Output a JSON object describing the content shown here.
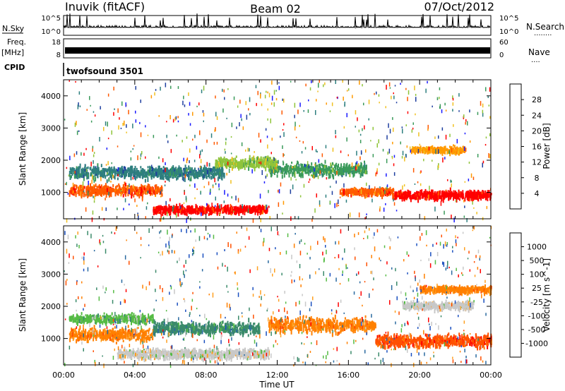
{
  "header": {
    "station": "Inuvik (fitACF)",
    "beam": "Beam 02",
    "date": "07/Oct/2012"
  },
  "left_labels": {
    "nsky": "N.Sky",
    "freq_line1": "Freq.",
    "freq_line2": "[MHz]",
    "cpid": "CPID"
  },
  "right_labels": {
    "nsearch": "N.Search",
    "nsearch_dots": "........",
    "nave": "Nave",
    "nave_dots": "...."
  },
  "cpid_text": "twofsound 3501",
  "colors": {
    "power_scale": [
      "#1a1aff",
      "#1f3f9f",
      "#2e7f7f",
      "#3a9a5a",
      "#8fc43a",
      "#f0c020",
      "#ff9a00",
      "#ff5a00",
      "#ff0000"
    ],
    "velocity_scale": [
      "#1a4fbf",
      "#2a6aa0",
      "#3a8a6a",
      "#55bb44",
      "#c8c8c8",
      "#ffa020",
      "#ff8000",
      "#ff5000",
      "#ff0000"
    ]
  },
  "chart_data": [
    {
      "type": "line",
      "panel": "noise",
      "left_ticks": [
        "10^5",
        "10^0"
      ],
      "right_ticks": [
        "10^5",
        "10^0"
      ],
      "series": [
        {
          "name": "N.Sky"
        },
        {
          "name": "N.Search"
        }
      ]
    },
    {
      "type": "line",
      "panel": "frequency",
      "left_ticks": [
        "18",
        "8"
      ],
      "right_ticks": [
        "60",
        "0"
      ],
      "series": [
        {
          "name": "Freq."
        },
        {
          "name": "Nave"
        }
      ]
    },
    {
      "type": "heatmap",
      "panel": "power",
      "ylabel": "Slant Range [km]",
      "y_ticks": [
        1000,
        2000,
        3000,
        4000
      ],
      "ylim": [
        180,
        4500
      ],
      "x_ticks": [
        "00:00",
        "04:00",
        "08:00",
        "12:00",
        "16:00",
        "20:00",
        "00:00"
      ],
      "colorbar_label": "Power [dB]",
      "colorbar_ticks": [
        "4",
        "8",
        "12",
        "16",
        "20",
        "24",
        "28"
      ],
      "echo_regions": [
        {
          "start_hour": 0.3,
          "end_hour": 5.5,
          "center_km": 1050,
          "spread_km": 250,
          "level": 7
        },
        {
          "start_hour": 5.0,
          "end_hour": 11.5,
          "center_km": 450,
          "spread_km": 180,
          "level": 8
        },
        {
          "start_hour": 15.5,
          "end_hour": 18.5,
          "center_km": 1000,
          "spread_km": 180,
          "level": 7
        },
        {
          "start_hour": 18.5,
          "end_hour": 24.0,
          "center_km": 900,
          "spread_km": 220,
          "level": 8
        },
        {
          "start_hour": 0.3,
          "end_hour": 9.0,
          "center_km": 1600,
          "spread_km": 300,
          "level": 2
        },
        {
          "start_hour": 11.5,
          "end_hour": 17.0,
          "center_km": 1700,
          "spread_km": 300,
          "level": 3
        },
        {
          "start_hour": 8.5,
          "end_hour": 12.0,
          "center_km": 1900,
          "spread_km": 250,
          "level": 4
        },
        {
          "start_hour": 19.5,
          "end_hour": 22.5,
          "center_km": 2300,
          "spread_km": 150,
          "level": 6
        }
      ]
    },
    {
      "type": "heatmap",
      "panel": "velocity",
      "xlabel": "Time UT",
      "ylabel": "Slant Range [km]",
      "y_ticks": [
        1000,
        2000,
        3000,
        4000
      ],
      "ylim": [
        180,
        4500
      ],
      "x_ticks": [
        "00:00",
        "04:00",
        "08:00",
        "12:00",
        "16:00",
        "20:00",
        "00:00"
      ],
      "colorbar_label": "Velocity [m s^-1]",
      "colorbar_ticks": [
        "1000",
        "500",
        "100",
        "25",
        "-25",
        "-100",
        "-500",
        "-1000"
      ],
      "echo_regions": [
        {
          "start_hour": 0.3,
          "end_hour": 5.0,
          "center_km": 1100,
          "spread_km": 300,
          "level": 6
        },
        {
          "start_hour": 0.3,
          "end_hour": 5.0,
          "center_km": 1600,
          "spread_km": 200,
          "level": 3
        },
        {
          "start_hour": 3.0,
          "end_hour": 11.5,
          "center_km": 500,
          "spread_km": 250,
          "level": 4
        },
        {
          "start_hour": 5.0,
          "end_hour": 11.0,
          "center_km": 1300,
          "spread_km": 300,
          "level": 2
        },
        {
          "start_hour": 11.5,
          "end_hour": 17.5,
          "center_km": 1400,
          "spread_km": 350,
          "level": 6
        },
        {
          "start_hour": 17.5,
          "end_hour": 24.0,
          "center_km": 900,
          "spread_km": 300,
          "level": 7
        },
        {
          "start_hour": 19.0,
          "end_hour": 23.0,
          "center_km": 2000,
          "spread_km": 200,
          "level": 4
        },
        {
          "start_hour": 20.0,
          "end_hour": 24.0,
          "center_km": 2500,
          "spread_km": 150,
          "level": 6
        }
      ]
    }
  ]
}
